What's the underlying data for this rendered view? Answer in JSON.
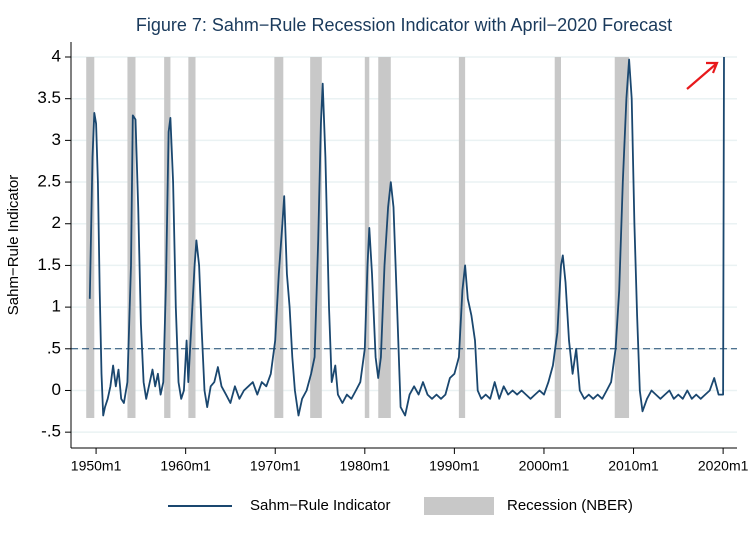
{
  "chart_data": {
    "type": "line",
    "title": "Figure 7: Sahm−Rule Recession Indicator with April−2020 Forecast",
    "y_label": "Sahm−Rule Indicator",
    "xlim": [
      1947.2,
      2021.55
    ],
    "xticks": [
      {
        "value": 1950,
        "label": "1950m1"
      },
      {
        "value": 1960,
        "label": "1960m1"
      },
      {
        "value": 1970,
        "label": "1970m1"
      },
      {
        "value": 1980,
        "label": "1980m1"
      },
      {
        "value": 1990,
        "label": "1990m1"
      },
      {
        "value": 2000,
        "label": "2000m1"
      },
      {
        "value": 2010,
        "label": "2010m1"
      },
      {
        "value": 2020,
        "label": "2020m1"
      }
    ],
    "ylim": [
      -0.69,
      4.18
    ],
    "yticks": [
      {
        "value": -0.5,
        "label": "-.5"
      },
      0,
      {
        "value": 0.5,
        "label": ".5"
      },
      1,
      1.5,
      2,
      2.5,
      3,
      3.5,
      4
    ],
    "grid": true,
    "reference_line": 0.5,
    "series": [
      {
        "name": "Sahm−Rule Indicator",
        "color": "#1a476f",
        "x": [
          1949.3,
          1949.6,
          1949.8,
          1950.0,
          1950.2,
          1950.4,
          1950.6,
          1950.8,
          1951.0,
          1951.3,
          1951.6,
          1951.9,
          1952.2,
          1952.5,
          1952.8,
          1953.1,
          1953.5,
          1953.9,
          1954.1,
          1954.4,
          1954.7,
          1955.0,
          1955.3,
          1955.6,
          1956.0,
          1956.3,
          1956.6,
          1956.9,
          1957.2,
          1957.5,
          1957.8,
          1958.1,
          1958.3,
          1958.6,
          1958.9,
          1959.2,
          1959.5,
          1959.8,
          1960.1,
          1960.3,
          1960.6,
          1961.0,
          1961.2,
          1961.5,
          1961.8,
          1962.1,
          1962.4,
          1962.8,
          1963.2,
          1963.6,
          1964.0,
          1964.5,
          1965.0,
          1965.5,
          1966.0,
          1966.5,
          1967.0,
          1967.5,
          1968.0,
          1968.5,
          1969.0,
          1969.5,
          1970.0,
          1970.4,
          1970.8,
          1971.0,
          1971.3,
          1971.6,
          1971.9,
          1972.2,
          1972.6,
          1973.0,
          1973.5,
          1974.0,
          1974.4,
          1974.8,
          1975.1,
          1975.3,
          1975.6,
          1976.0,
          1976.3,
          1976.7,
          1977.0,
          1977.5,
          1978.0,
          1978.5,
          1979.0,
          1979.5,
          1980.0,
          1980.3,
          1980.5,
          1980.8,
          1981.2,
          1981.5,
          1981.8,
          1982.2,
          1982.6,
          1982.9,
          1983.2,
          1983.6,
          1984.0,
          1984.5,
          1985.0,
          1985.5,
          1986.0,
          1986.5,
          1987.0,
          1987.5,
          1988.0,
          1988.5,
          1989.0,
          1989.5,
          1990.0,
          1990.5,
          1990.9,
          1991.2,
          1991.5,
          1991.9,
          1992.3,
          1992.6,
          1993.0,
          1993.5,
          1994.0,
          1994.5,
          1995.0,
          1995.5,
          1996.0,
          1996.5,
          1997.0,
          1997.5,
          1998.0,
          1998.5,
          1999.0,
          1999.5,
          2000.0,
          2000.5,
          2001.0,
          2001.5,
          2001.9,
          2002.1,
          2002.4,
          2002.8,
          2003.2,
          2003.6,
          2004.0,
          2004.5,
          2005.0,
          2005.5,
          2006.0,
          2006.5,
          2007.0,
          2007.5,
          2008.0,
          2008.4,
          2008.8,
          2009.2,
          2009.5,
          2009.8,
          2010.1,
          2010.4,
          2010.7,
          2011.0,
          2011.5,
          2012.0,
          2012.5,
          2013.0,
          2013.5,
          2014.0,
          2014.5,
          2015.0,
          2015.5,
          2016.0,
          2016.5,
          2017.0,
          2017.5,
          2018.0,
          2018.5,
          2019.0,
          2019.5,
          2020.0,
          2020.1
        ],
        "values": [
          1.1,
          2.8,
          3.33,
          3.2,
          2.5,
          1.2,
          0.2,
          -0.3,
          -0.2,
          -0.1,
          0.05,
          0.3,
          0.05,
          0.25,
          -0.1,
          -0.15,
          0.1,
          1.5,
          3.3,
          3.25,
          2.2,
          0.8,
          0.1,
          -0.1,
          0.1,
          0.25,
          0.05,
          0.2,
          -0.05,
          0.1,
          1.3,
          3.1,
          3.27,
          2.5,
          1.0,
          0.1,
          -0.1,
          0.0,
          0.6,
          0.1,
          0.7,
          1.5,
          1.8,
          1.5,
          0.7,
          0.0,
          -0.2,
          0.05,
          0.1,
          0.28,
          0.05,
          -0.05,
          -0.15,
          0.05,
          -0.1,
          0.0,
          0.05,
          0.1,
          -0.05,
          0.1,
          0.05,
          0.2,
          0.6,
          1.4,
          2.0,
          2.33,
          1.4,
          1.0,
          0.4,
          0.0,
          -0.3,
          -0.1,
          0.0,
          0.2,
          0.4,
          1.8,
          3.2,
          3.68,
          2.8,
          1.0,
          0.1,
          0.3,
          -0.05,
          -0.15,
          -0.05,
          -0.1,
          0.0,
          0.1,
          0.5,
          1.5,
          1.95,
          1.4,
          0.4,
          0.15,
          0.4,
          1.5,
          2.2,
          2.5,
          2.2,
          1.0,
          -0.2,
          -0.3,
          -0.05,
          0.05,
          -0.05,
          0.1,
          -0.05,
          -0.1,
          -0.05,
          -0.1,
          -0.05,
          0.15,
          0.2,
          0.4,
          1.2,
          1.5,
          1.1,
          0.9,
          0.6,
          0.0,
          -0.1,
          -0.05,
          -0.1,
          0.1,
          -0.1,
          0.05,
          -0.05,
          0.0,
          -0.05,
          0.0,
          -0.05,
          -0.1,
          -0.05,
          0.0,
          -0.05,
          0.1,
          0.3,
          0.7,
          1.5,
          1.62,
          1.3,
          0.6,
          0.2,
          0.5,
          0.0,
          -0.1,
          -0.05,
          -0.1,
          -0.05,
          -0.1,
          0.0,
          0.1,
          0.5,
          1.2,
          2.5,
          3.5,
          3.97,
          3.5,
          2.0,
          0.9,
          0.0,
          -0.25,
          -0.1,
          0.0,
          -0.05,
          -0.1,
          -0.05,
          0.0,
          -0.1,
          -0.05,
          -0.1,
          0.0,
          -0.1,
          -0.05,
          -0.1,
          -0.05,
          0.0,
          0.15,
          -0.05,
          -0.05,
          4.0
        ]
      },
      {
        "name": "Recession (NBER)",
        "color": "#c8c8c8",
        "y_range": [
          -0.33,
          4.0
        ],
        "intervals": [
          [
            1948.9,
            1949.8
          ],
          [
            1953.5,
            1954.4
          ],
          [
            1957.6,
            1958.3
          ],
          [
            1960.3,
            1961.1
          ],
          [
            1969.9,
            1970.9
          ],
          [
            1973.9,
            1975.2
          ],
          [
            1980.0,
            1980.5
          ],
          [
            1981.5,
            1982.9
          ],
          [
            1990.5,
            1991.2
          ],
          [
            2001.2,
            2001.9
          ],
          [
            2007.9,
            2009.5
          ]
        ]
      }
    ]
  }
}
